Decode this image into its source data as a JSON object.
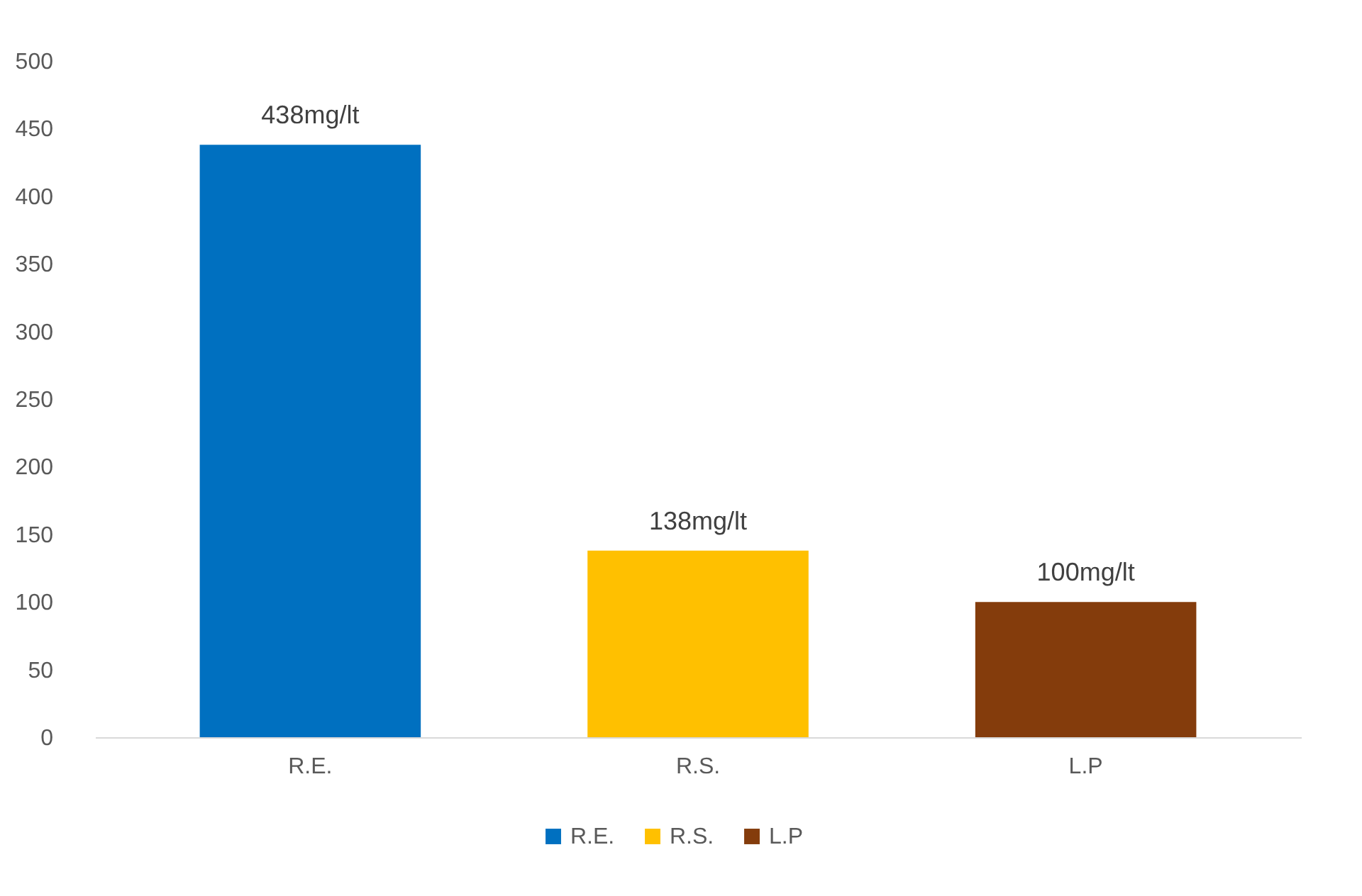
{
  "chart_data": {
    "type": "bar",
    "categories": [
      "R.E.",
      "R.S.",
      "L.P"
    ],
    "series": [
      {
        "name": "R.E.",
        "color": "#0070c0",
        "values": [
          438,
          null,
          null
        ],
        "value_labels": [
          "438mg/lt",
          null,
          null
        ]
      },
      {
        "name": "R.S.",
        "color": "#ffc000",
        "values": [
          null,
          138,
          null
        ],
        "value_labels": [
          null,
          "138mg/lt",
          null
        ]
      },
      {
        "name": "L.P",
        "color": "#843c0c",
        "values": [
          null,
          null,
          100
        ],
        "value_labels": [
          null,
          null,
          "100mg/lt"
        ]
      }
    ],
    "ylim": [
      0,
      500
    ],
    "yticks": [
      0,
      50,
      100,
      150,
      200,
      250,
      300,
      350,
      400,
      450,
      500
    ],
    "grid": false,
    "legend": "bottom"
  }
}
